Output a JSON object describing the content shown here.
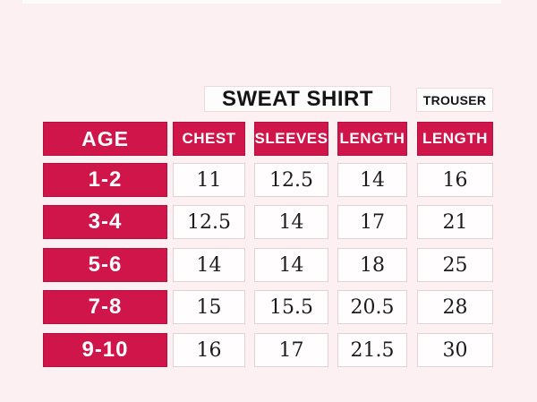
{
  "titles": {
    "sweatshirt": "SWEAT SHIRT",
    "trouser": "TROUSER"
  },
  "colors": {
    "accent_red": "#d0154a",
    "background_pink": "#fcf0f2",
    "value_cell_border": "#e2d2d5",
    "title_box_border": "#f2d7db"
  },
  "chart_data": {
    "type": "table",
    "group_headers": [
      {
        "label": "SWEAT SHIRT",
        "spans_columns": [
          "CHEST",
          "SLEEVES",
          "LENGTH"
        ]
      },
      {
        "label": "TROUSER",
        "spans_columns": [
          "LENGTH"
        ]
      }
    ],
    "columns": [
      "AGE",
      "CHEST",
      "SLEEVES",
      "LENGTH",
      "LENGTH"
    ],
    "rows": [
      [
        "1-2",
        11,
        12.5,
        14,
        16
      ],
      [
        "3-4",
        12.5,
        14,
        17,
        21
      ],
      [
        "5-6",
        14,
        14,
        18,
        25
      ],
      [
        "7-8",
        15,
        15.5,
        20.5,
        28
      ],
      [
        "9-10",
        16,
        17,
        21.5,
        30
      ]
    ],
    "layout_hints": {
      "header_fill": "#d0154a",
      "header_text_color": "#ffffff",
      "age_column_fill": "#d0154a",
      "value_cell_fill": "#fffdfe",
      "grid": "separated-cells"
    }
  }
}
